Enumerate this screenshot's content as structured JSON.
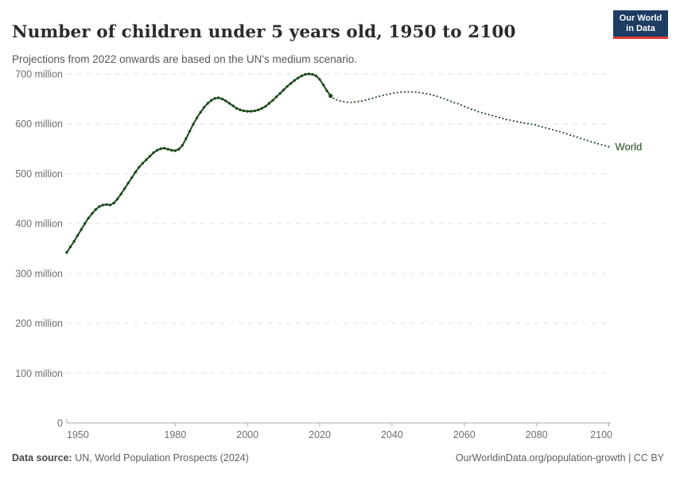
{
  "header": {
    "title": "Number of children under 5 years old, 1950 to 2100",
    "subtitle": "Projections from 2022 onwards are based on the UN's medium scenario."
  },
  "logo": {
    "line1": "Our World",
    "line2": "in Data",
    "bg_color": "#1d3d63",
    "accent_color": "#dc3d33"
  },
  "footer": {
    "datasource_label": "Data source:",
    "datasource_value": "UN, World Population Prospects (2024)",
    "right_text": "OurWorldinData.org/population-growth | CC BY"
  },
  "chart_data": {
    "type": "line",
    "title": "Number of children under 5 years old, 1950 to 2100",
    "subtitle": "Projections from 2022 onwards are based on the UN's medium scenario.",
    "xlabel": "",
    "ylabel": "",
    "unit": "million",
    "xlim": [
      1950,
      2100
    ],
    "ylim": [
      0,
      700
    ],
    "grid": true,
    "legend_position": "end-of-line",
    "series_label": "World",
    "line_color": "#1c4a1c",
    "grid_color": "#e2e2e2",
    "axis_color": "#a9a9a9",
    "tick_text_color": "#6e6e6e",
    "ytick_values": [
      0,
      100,
      200,
      300,
      400,
      500,
      600,
      700
    ],
    "ytick_labels": [
      "0",
      "100 million",
      "200 million",
      "300 million",
      "400 million",
      "500 million",
      "600 million",
      "700 million"
    ],
    "xtick_values": [
      1950,
      1980,
      2000,
      2020,
      2040,
      2060,
      2080,
      2100
    ],
    "series": [
      {
        "name": "World",
        "segment": "estimates",
        "style": "solid",
        "markers": true,
        "points": [
          [
            1950,
            342
          ],
          [
            1951,
            353
          ],
          [
            1952,
            364
          ],
          [
            1953,
            376
          ],
          [
            1954,
            388
          ],
          [
            1955,
            400
          ],
          [
            1956,
            411
          ],
          [
            1957,
            420
          ],
          [
            1958,
            428
          ],
          [
            1959,
            434
          ],
          [
            1960,
            437
          ],
          [
            1961,
            438
          ],
          [
            1962,
            437
          ],
          [
            1963,
            441
          ],
          [
            1964,
            449
          ],
          [
            1965,
            459
          ],
          [
            1966,
            470
          ],
          [
            1967,
            481
          ],
          [
            1968,
            492
          ],
          [
            1969,
            503
          ],
          [
            1970,
            513
          ],
          [
            1971,
            521
          ],
          [
            1972,
            528
          ],
          [
            1973,
            535
          ],
          [
            1974,
            542
          ],
          [
            1975,
            547
          ],
          [
            1976,
            550
          ],
          [
            1977,
            551
          ],
          [
            1978,
            549
          ],
          [
            1979,
            547
          ],
          [
            1980,
            546
          ],
          [
            1981,
            549
          ],
          [
            1982,
            557
          ],
          [
            1983,
            570
          ],
          [
            1984,
            585
          ],
          [
            1985,
            599
          ],
          [
            1986,
            612
          ],
          [
            1987,
            623
          ],
          [
            1988,
            633
          ],
          [
            1989,
            641
          ],
          [
            1990,
            647
          ],
          [
            1991,
            651
          ],
          [
            1992,
            652
          ],
          [
            1993,
            650
          ],
          [
            1994,
            646
          ],
          [
            1995,
            641
          ],
          [
            1996,
            636
          ],
          [
            1997,
            631
          ],
          [
            1998,
            628
          ],
          [
            1999,
            626
          ],
          [
            2000,
            625
          ],
          [
            2001,
            625
          ],
          [
            2002,
            626
          ],
          [
            2003,
            628
          ],
          [
            2004,
            631
          ],
          [
            2005,
            635
          ],
          [
            2006,
            641
          ],
          [
            2007,
            647
          ],
          [
            2008,
            654
          ],
          [
            2009,
            661
          ],
          [
            2010,
            668
          ],
          [
            2011,
            675
          ],
          [
            2012,
            681
          ],
          [
            2013,
            687
          ],
          [
            2014,
            692
          ],
          [
            2015,
            696
          ],
          [
            2016,
            699
          ],
          [
            2017,
            700
          ],
          [
            2018,
            699
          ],
          [
            2019,
            696
          ],
          [
            2020,
            689
          ],
          [
            2021,
            678
          ],
          [
            2022,
            666
          ],
          [
            2023,
            656
          ]
        ]
      },
      {
        "name": "World",
        "segment": "projection (UN medium scenario)",
        "style": "dotted",
        "markers": false,
        "points": [
          [
            2023,
            656
          ],
          [
            2024,
            650
          ],
          [
            2025,
            647
          ],
          [
            2026,
            645
          ],
          [
            2027,
            644
          ],
          [
            2028,
            643
          ],
          [
            2029,
            643
          ],
          [
            2030,
            644
          ],
          [
            2031,
            645
          ],
          [
            2032,
            646
          ],
          [
            2033,
            648
          ],
          [
            2034,
            650
          ],
          [
            2035,
            652
          ],
          [
            2036,
            654
          ],
          [
            2037,
            656
          ],
          [
            2038,
            658
          ],
          [
            2039,
            659
          ],
          [
            2040,
            661
          ],
          [
            2041,
            662
          ],
          [
            2042,
            663
          ],
          [
            2043,
            664
          ],
          [
            2044,
            664
          ],
          [
            2045,
            664
          ],
          [
            2046,
            664
          ],
          [
            2047,
            663
          ],
          [
            2048,
            662
          ],
          [
            2049,
            661
          ],
          [
            2050,
            660
          ],
          [
            2051,
            658
          ],
          [
            2052,
            656
          ],
          [
            2053,
            654
          ],
          [
            2054,
            651
          ],
          [
            2055,
            649
          ],
          [
            2056,
            646
          ],
          [
            2057,
            643
          ],
          [
            2058,
            641
          ],
          [
            2059,
            638
          ],
          [
            2060,
            635
          ],
          [
            2061,
            632
          ],
          [
            2062,
            629
          ],
          [
            2063,
            627
          ],
          [
            2064,
            624
          ],
          [
            2065,
            622
          ],
          [
            2066,
            620
          ],
          [
            2067,
            618
          ],
          [
            2068,
            616
          ],
          [
            2069,
            614
          ],
          [
            2070,
            612
          ],
          [
            2071,
            610
          ],
          [
            2072,
            608
          ],
          [
            2073,
            607
          ],
          [
            2074,
            605
          ],
          [
            2075,
            604
          ],
          [
            2076,
            602
          ],
          [
            2077,
            601
          ],
          [
            2078,
            600
          ],
          [
            2079,
            599
          ],
          [
            2080,
            597
          ],
          [
            2081,
            595
          ],
          [
            2082,
            593
          ],
          [
            2083,
            591
          ],
          [
            2084,
            589
          ],
          [
            2085,
            587
          ],
          [
            2086,
            585
          ],
          [
            2087,
            583
          ],
          [
            2088,
            581
          ],
          [
            2089,
            578
          ],
          [
            2090,
            576
          ],
          [
            2091,
            574
          ],
          [
            2092,
            571
          ],
          [
            2093,
            569
          ],
          [
            2094,
            567
          ],
          [
            2095,
            564
          ],
          [
            2096,
            562
          ],
          [
            2097,
            560
          ],
          [
            2098,
            558
          ],
          [
            2099,
            556
          ],
          [
            2100,
            554
          ]
        ]
      }
    ]
  }
}
